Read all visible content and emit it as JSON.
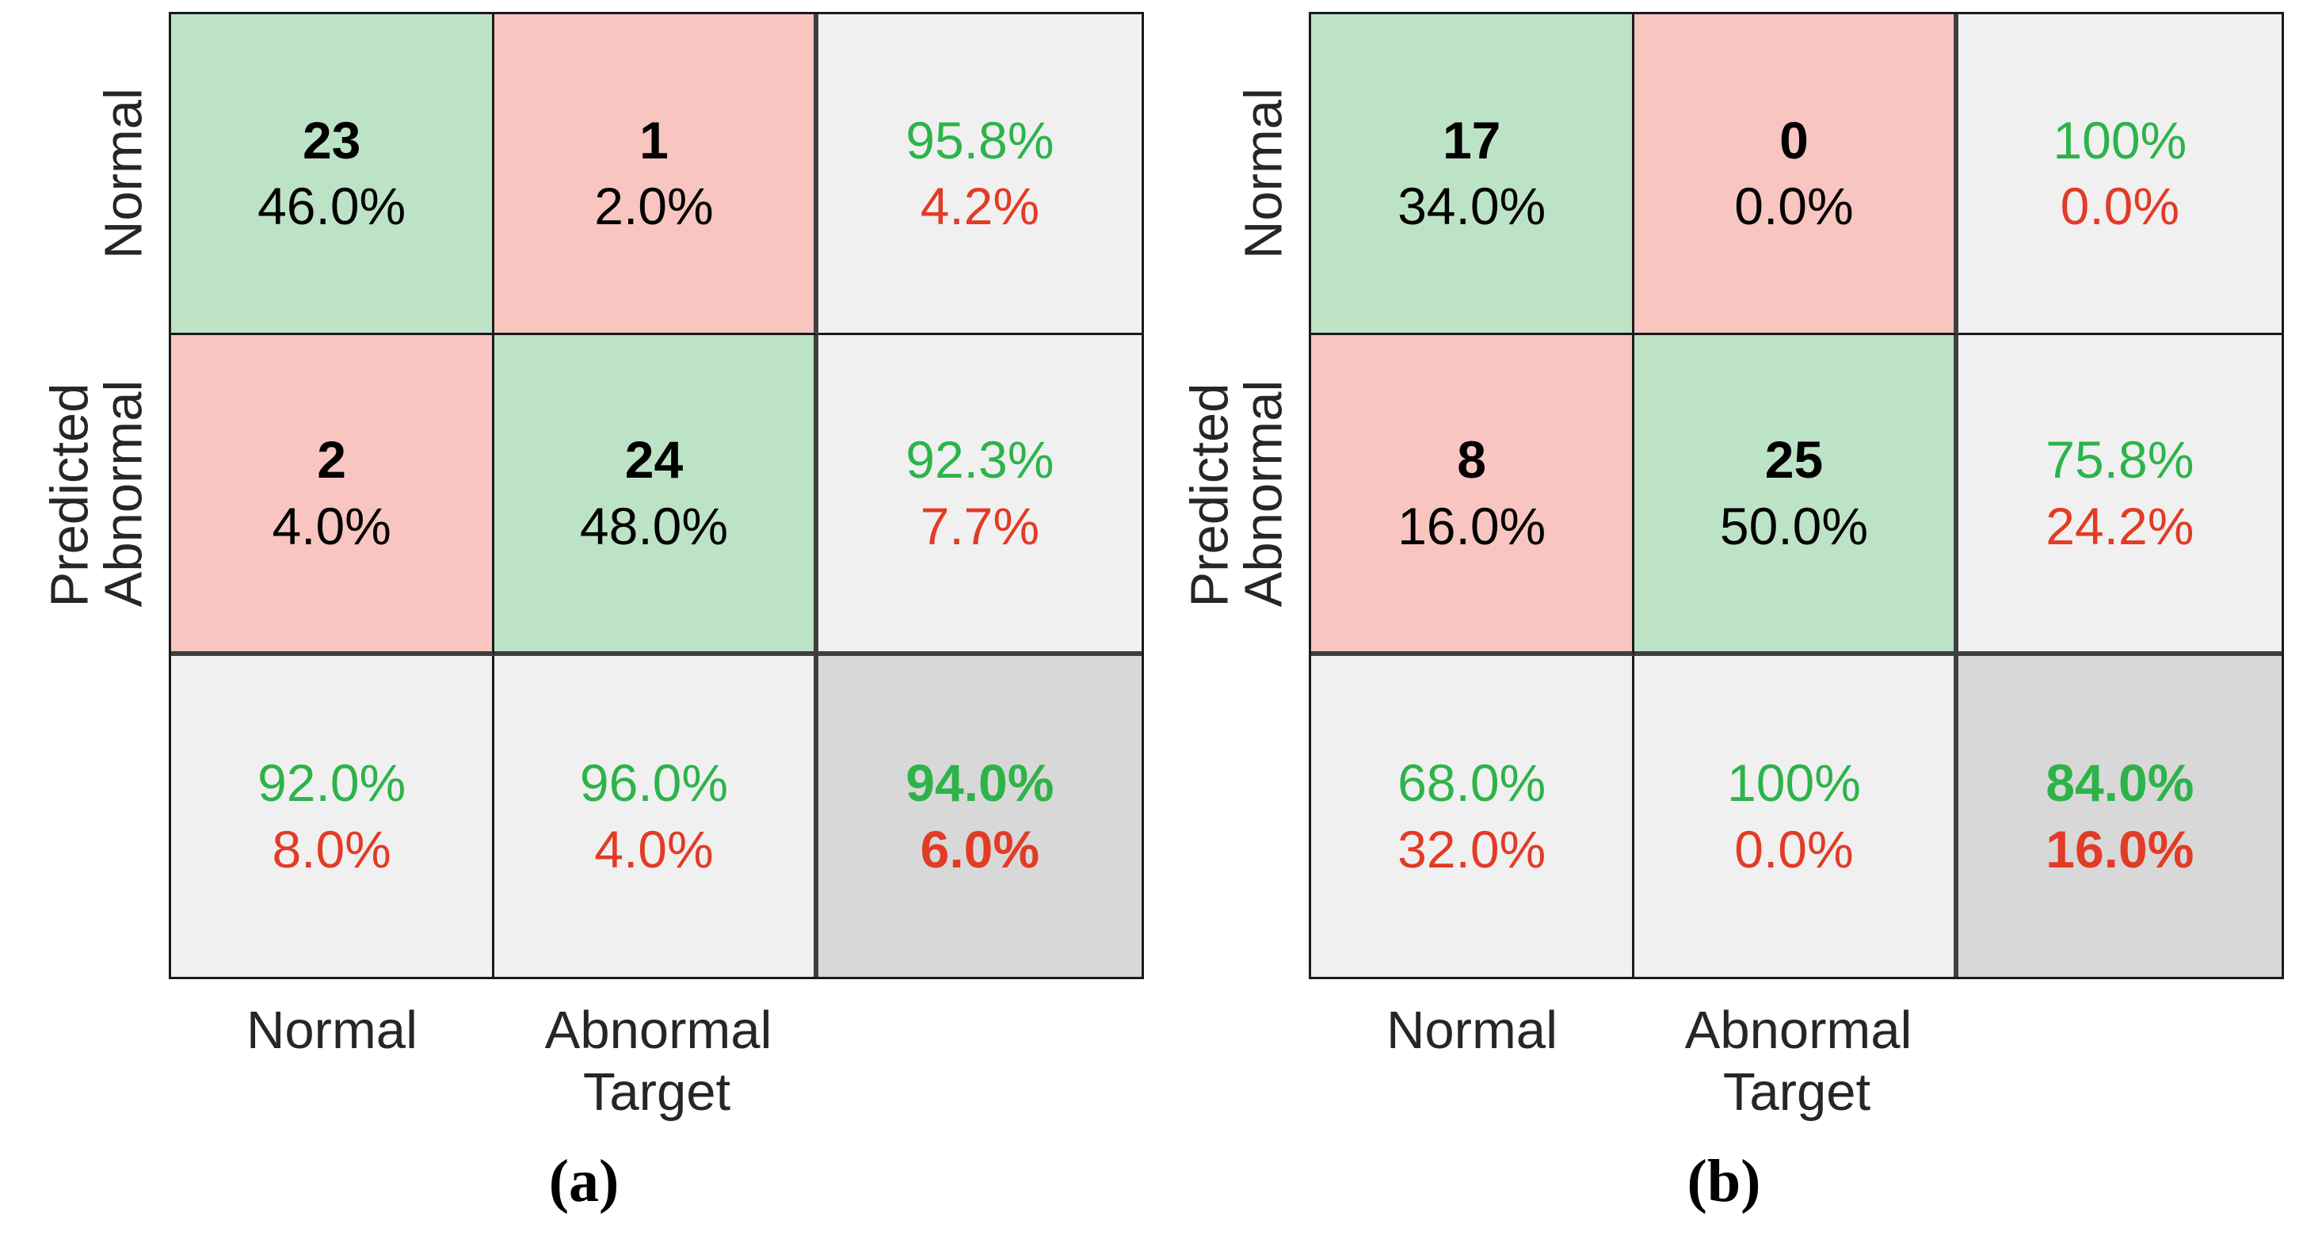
{
  "colors": {
    "cell_green": "#bde3c6",
    "cell_red": "#f8c5c0",
    "cell_gray": "#f0f0f0",
    "cell_dark_gray": "#d8d8d8",
    "text_green": "#2db34a",
    "text_red": "#e23b26",
    "text_black": "#000000",
    "grid_thin": "#1a1a1a",
    "grid_thick": "#3f3f3f"
  },
  "figures": [
    {
      "caption": "(a)",
      "ylabel": "Predicted",
      "xlabel": "Target",
      "row_labels": [
        "Normal",
        "Abnormal"
      ],
      "col_labels": [
        "Normal",
        "Abnormal"
      ],
      "cells": [
        [
          {
            "line1": "23",
            "line2": "46.0%"
          },
          {
            "line1": "1",
            "line2": "2.0%"
          },
          {
            "line1": "95.8%",
            "line2": "4.2%"
          }
        ],
        [
          {
            "line1": "2",
            "line2": "4.0%"
          },
          {
            "line1": "24",
            "line2": "48.0%"
          },
          {
            "line1": "92.3%",
            "line2": "7.7%"
          }
        ],
        [
          {
            "line1": "92.0%",
            "line2": "8.0%"
          },
          {
            "line1": "96.0%",
            "line2": "4.0%"
          },
          {
            "line1": "94.0%",
            "line2": "6.0%"
          }
        ]
      ]
    },
    {
      "caption": "(b)",
      "ylabel": "Predicted",
      "xlabel": "Target",
      "row_labels": [
        "Normal",
        "Abnormal"
      ],
      "col_labels": [
        "Normal",
        "Abnormal"
      ],
      "cells": [
        [
          {
            "line1": "17",
            "line2": "34.0%"
          },
          {
            "line1": "0",
            "line2": "0.0%"
          },
          {
            "line1": "100%",
            "line2": "0.0%"
          }
        ],
        [
          {
            "line1": "8",
            "line2": "16.0%"
          },
          {
            "line1": "25",
            "line2": "50.0%"
          },
          {
            "line1": "75.8%",
            "line2": "24.2%"
          }
        ],
        [
          {
            "line1": "68.0%",
            "line2": "32.0%"
          },
          {
            "line1": "100%",
            "line2": "0.0%"
          },
          {
            "line1": "84.0%",
            "line2": "16.0%"
          }
        ]
      ]
    }
  ],
  "chart_data": [
    {
      "type": "heatmap",
      "name": "confusion-matrix-a",
      "title": "(a)",
      "xlabel": "Target",
      "ylabel": "Predicted",
      "classes": [
        "Normal",
        "Abnormal"
      ],
      "counts": [
        [
          23,
          1
        ],
        [
          2,
          24
        ]
      ],
      "percent_of_total": [
        [
          46.0,
          2.0
        ],
        [
          4.0,
          48.0
        ]
      ],
      "row_summary_pct": [
        [
          95.8,
          4.2
        ],
        [
          92.3,
          7.7
        ]
      ],
      "col_summary_pct": [
        [
          92.0,
          8.0
        ],
        [
          96.0,
          4.0
        ]
      ],
      "overall_pct": [
        94.0,
        6.0
      ]
    },
    {
      "type": "heatmap",
      "name": "confusion-matrix-b",
      "title": "(b)",
      "xlabel": "Target",
      "ylabel": "Predicted",
      "classes": [
        "Normal",
        "Abnormal"
      ],
      "counts": [
        [
          17,
          0
        ],
        [
          8,
          25
        ]
      ],
      "percent_of_total": [
        [
          34.0,
          0.0
        ],
        [
          16.0,
          50.0
        ]
      ],
      "row_summary_pct": [
        [
          100.0,
          0.0
        ],
        [
          75.8,
          24.2
        ]
      ],
      "col_summary_pct": [
        [
          68.0,
          32.0
        ],
        [
          100.0,
          0.0
        ]
      ],
      "overall_pct": [
        84.0,
        16.0
      ]
    }
  ]
}
